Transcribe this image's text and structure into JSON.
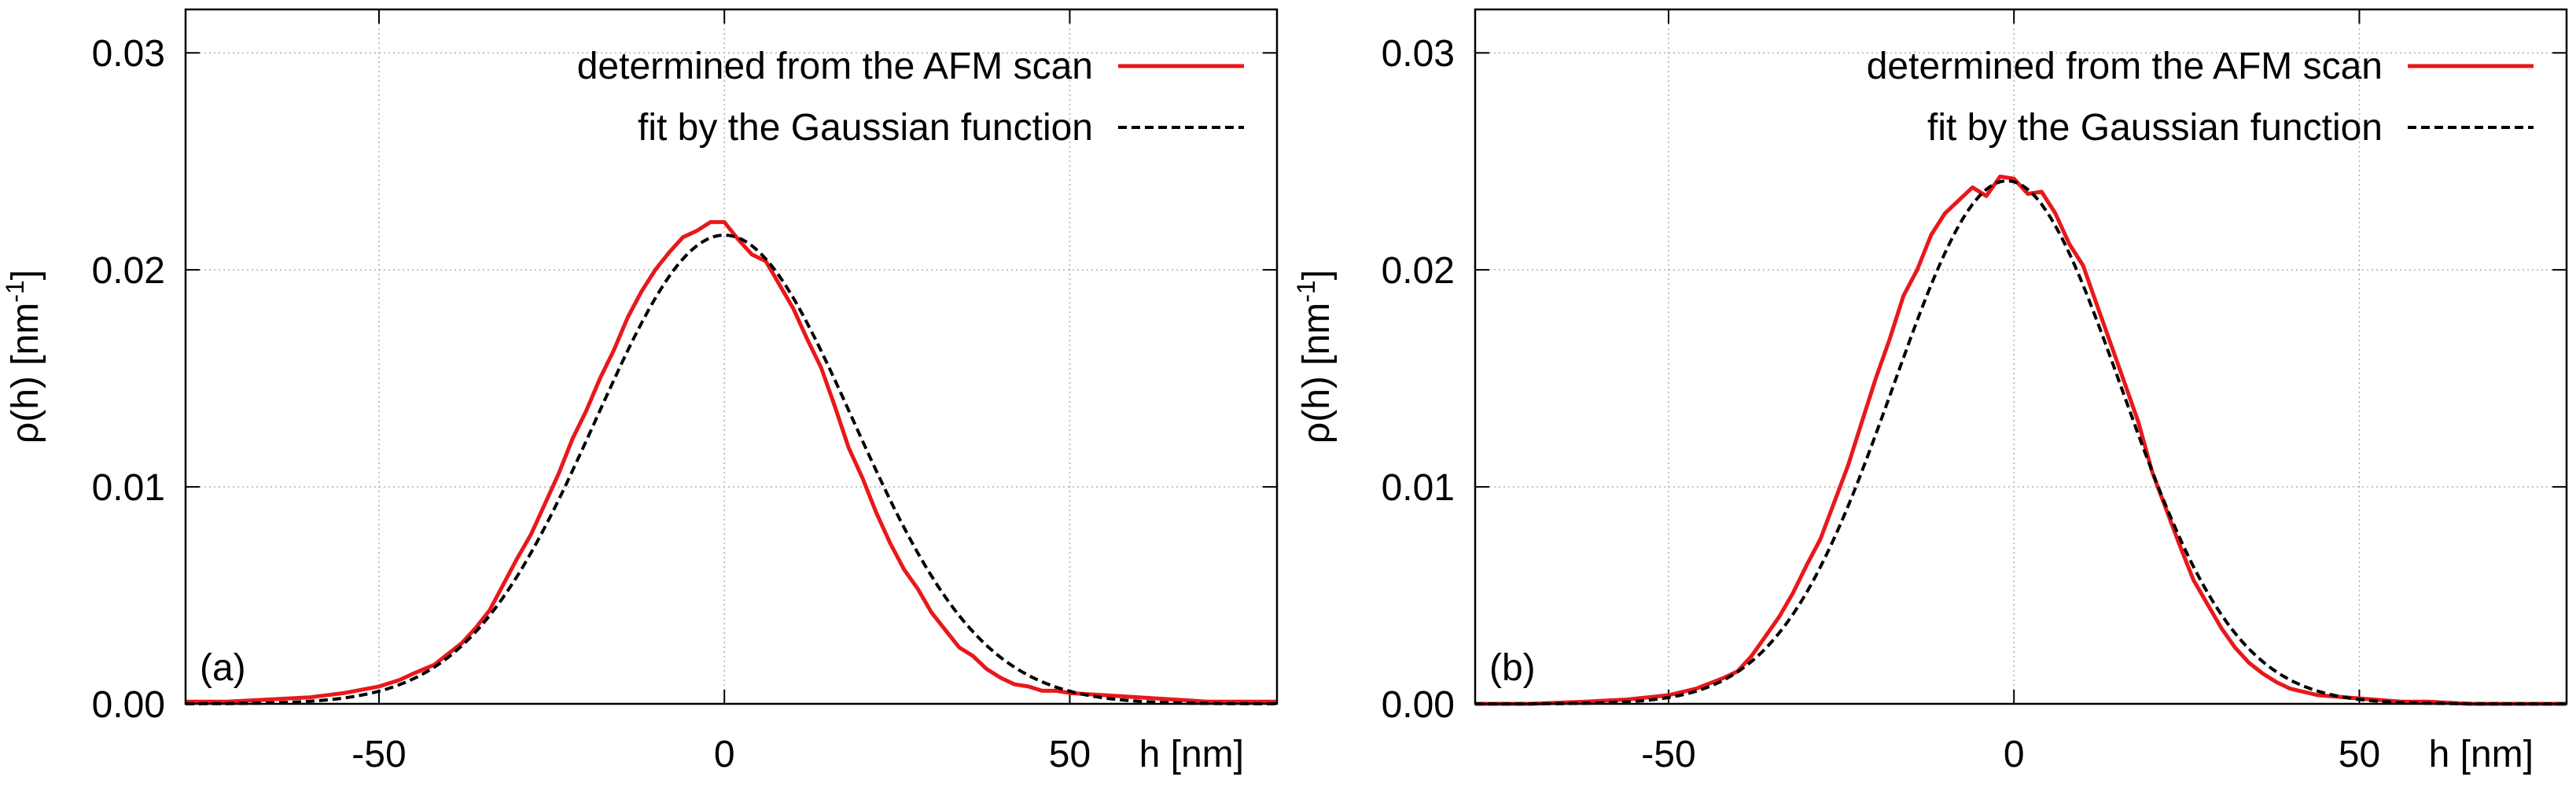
{
  "chart_data": [
    {
      "type": "line",
      "panel_label": "(a)",
      "xlabel": "h [nm]",
      "ylabel": "ρ(h) [nm",
      "ylabel_sup": "-1",
      "ylabel_close": "]",
      "xlim": [
        -78,
        80
      ],
      "ylim": [
        0,
        0.032
      ],
      "xticks": [
        -50,
        0,
        50
      ],
      "xtick_labels": [
        "-50",
        "0",
        "50"
      ],
      "yticks": [
        0,
        0.01,
        0.02,
        0.03
      ],
      "ytick_labels": [
        "0.00",
        "0.01",
        "0.02",
        "0.03"
      ],
      "grid": true,
      "legend_position": "top-right",
      "series": [
        {
          "name": "determined from the AFM scan",
          "color": "#e8181b",
          "style": "solid",
          "x": [
            -78,
            -72,
            -66,
            -60,
            -55,
            -50,
            -47,
            -45,
            -42,
            -40,
            -38,
            -36,
            -34,
            -32,
            -30,
            -28,
            -26,
            -24,
            -22,
            -20,
            -18,
            -16,
            -14,
            -12,
            -10,
            -8,
            -6,
            -4,
            -2,
            0,
            2,
            4,
            6,
            8,
            10,
            12,
            14,
            16,
            18,
            20,
            22,
            24,
            26,
            28,
            30,
            32,
            34,
            36,
            38,
            40,
            42,
            44,
            46,
            48,
            50,
            55,
            60,
            65,
            70,
            75,
            80
          ],
          "y": [
            0.0001,
            0.0001,
            0.0002,
            0.0003,
            0.0005,
            0.0008,
            0.0011,
            0.0014,
            0.0018,
            0.0023,
            0.0028,
            0.0035,
            0.0043,
            0.0055,
            0.0067,
            0.0078,
            0.0092,
            0.0106,
            0.0122,
            0.0135,
            0.015,
            0.0163,
            0.0178,
            0.019,
            0.02,
            0.0208,
            0.0215,
            0.0218,
            0.0222,
            0.0222,
            0.0214,
            0.0207,
            0.0204,
            0.0193,
            0.0182,
            0.0168,
            0.0155,
            0.0137,
            0.0118,
            0.0104,
            0.0088,
            0.0074,
            0.0062,
            0.0053,
            0.0042,
            0.0034,
            0.0026,
            0.0022,
            0.0016,
            0.0012,
            0.0009,
            0.0008,
            0.0006,
            0.0006,
            0.0005,
            0.0004,
            0.0003,
            0.0002,
            0.0001,
            0.0001,
            0.0001
          ]
        },
        {
          "name": "fit by the Gaussian function",
          "color": "#000000",
          "style": "dashed",
          "gaussian": {
            "amplitude": 0.0216,
            "mean": 0,
            "sigma": 18.6
          }
        }
      ]
    },
    {
      "type": "line",
      "panel_label": "(b)",
      "xlabel": "h [nm]",
      "ylabel": "ρ(h) [nm",
      "ylabel_sup": "-1",
      "ylabel_close": "]",
      "xlim": [
        -78,
        80
      ],
      "ylim": [
        0,
        0.032
      ],
      "xticks": [
        -50,
        0,
        50
      ],
      "xtick_labels": [
        "-50",
        "0",
        "50"
      ],
      "yticks": [
        0,
        0.01,
        0.02,
        0.03
      ],
      "ytick_labels": [
        "0.00",
        "0.01",
        "0.02",
        "0.03"
      ],
      "grid": true,
      "legend_position": "top-right",
      "series": [
        {
          "name": "determined from the AFM scan",
          "color": "#e8181b",
          "style": "solid",
          "x": [
            -78,
            -70,
            -62,
            -56,
            -50,
            -46,
            -42,
            -40,
            -38,
            -36,
            -34,
            -32,
            -30,
            -28,
            -26,
            -24,
            -22,
            -20,
            -18,
            -16,
            -14,
            -12,
            -10,
            -8,
            -6,
            -4,
            -2,
            0,
            2,
            4,
            6,
            8,
            10,
            12,
            14,
            16,
            18,
            20,
            22,
            24,
            26,
            28,
            30,
            32,
            34,
            36,
            38,
            40,
            44,
            48,
            52,
            56,
            60,
            66,
            72,
            80
          ],
          "y": [
            0.0,
            0.0,
            0.0001,
            0.0002,
            0.0004,
            0.0007,
            0.0012,
            0.0015,
            0.0022,
            0.0031,
            0.004,
            0.0051,
            0.0064,
            0.0076,
            0.0093,
            0.011,
            0.013,
            0.015,
            0.0168,
            0.0188,
            0.02,
            0.0216,
            0.0226,
            0.0232,
            0.0238,
            0.0234,
            0.0243,
            0.0242,
            0.0235,
            0.0236,
            0.0226,
            0.0212,
            0.0202,
            0.0184,
            0.0166,
            0.0148,
            0.013,
            0.0107,
            0.009,
            0.0073,
            0.0057,
            0.0046,
            0.0035,
            0.0026,
            0.0019,
            0.0014,
            0.001,
            0.0007,
            0.0004,
            0.0003,
            0.0002,
            0.0001,
            0.0001,
            0.0,
            0.0,
            0.0
          ]
        },
        {
          "name": "fit by the Gaussian function",
          "color": "#000000",
          "style": "dashed",
          "gaussian": {
            "amplitude": 0.0241,
            "mean": -1,
            "sigma": 16.5
          }
        }
      ]
    }
  ]
}
